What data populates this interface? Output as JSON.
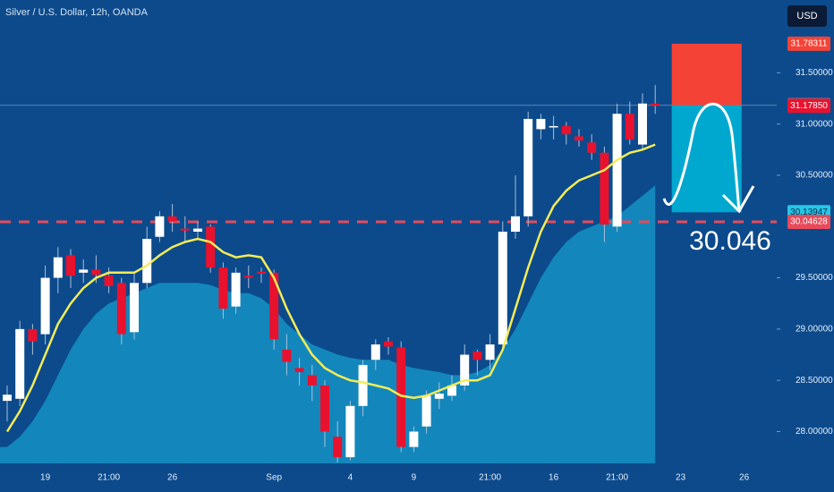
{
  "chart_data": {
    "type": "candlestick",
    "title": "Silver / U.S. Dollar, 12h, OANDA",
    "currency": "USD",
    "categories": [
      null,
      null,
      null,
      "19",
      null,
      null,
      null,
      null,
      "21:00",
      null,
      null,
      null,
      null,
      "26",
      null,
      null,
      null,
      null,
      null,
      null,
      null,
      "Sep",
      null,
      null,
      null,
      null,
      null,
      "4",
      null,
      null,
      null,
      null,
      "9",
      null,
      null,
      null,
      null,
      null,
      "21:00",
      null,
      null,
      null,
      null,
      "16",
      null,
      null,
      null,
      null,
      "21:00",
      null,
      null,
      null,
      null,
      "23",
      null,
      null,
      null,
      null,
      "26",
      null
    ],
    "open": [
      28.3,
      28.32,
      29.0,
      28.95,
      29.5,
      29.72,
      29.55,
      29.58,
      29.52,
      29.45,
      28.97,
      29.45,
      29.9,
      30.1,
      29.98,
      29.95,
      30.0,
      29.6,
      29.22,
      29.52,
      29.56,
      29.55,
      28.8,
      28.62,
      28.55,
      28.45,
      27.95,
      27.75,
      28.25,
      28.7,
      28.88,
      28.82,
      27.85,
      28.05,
      28.32,
      28.35,
      28.45,
      28.78,
      28.7,
      28.85,
      29.95,
      30.1,
      30.95,
      30.98,
      30.98,
      30.88,
      30.82,
      30.72,
      30.0,
      31.1,
      30.8,
      31.2,
      null,
      null,
      null,
      null,
      null,
      null,
      null,
      null
    ],
    "high": [
      28.45,
      29.08,
      29.05,
      29.62,
      29.8,
      29.78,
      29.68,
      29.72,
      29.6,
      29.5,
      29.55,
      30.0,
      30.15,
      30.22,
      30.1,
      30.05,
      30.02,
      29.65,
      29.6,
      29.62,
      29.6,
      29.58,
      28.95,
      28.72,
      28.65,
      28.5,
      28.1,
      28.3,
      28.7,
      28.9,
      28.92,
      28.88,
      28.05,
      28.4,
      28.48,
      28.55,
      28.85,
      28.8,
      28.95,
      30.05,
      30.5,
      31.12,
      31.1,
      31.08,
      31.02,
      30.95,
      30.9,
      30.78,
      31.2,
      31.22,
      31.3,
      31.38,
      null,
      null,
      null,
      null,
      null,
      null,
      null,
      null
    ],
    "low": [
      28.1,
      28.25,
      28.75,
      28.85,
      29.35,
      29.4,
      29.45,
      29.45,
      29.35,
      28.85,
      28.9,
      29.4,
      29.85,
      29.95,
      29.85,
      29.88,
      29.55,
      29.1,
      29.15,
      29.4,
      29.45,
      28.8,
      28.55,
      28.45,
      28.3,
      27.85,
      27.7,
      27.72,
      28.15,
      28.6,
      28.75,
      27.8,
      27.8,
      27.98,
      28.22,
      28.3,
      28.4,
      28.55,
      28.6,
      28.8,
      29.88,
      30.0,
      30.85,
      30.85,
      30.8,
      30.78,
      30.65,
      29.85,
      29.95,
      30.8,
      30.75,
      31.1,
      null,
      null,
      null,
      null,
      null,
      null,
      null,
      null
    ],
    "close": [
      28.36,
      29.0,
      28.88,
      29.5,
      29.7,
      29.52,
      29.58,
      29.53,
      29.42,
      28.95,
      29.45,
      29.88,
      30.1,
      30.05,
      29.96,
      29.98,
      29.6,
      29.2,
      29.55,
      29.5,
      29.54,
      28.9,
      28.68,
      28.58,
      28.45,
      28.0,
      27.75,
      28.25,
      28.65,
      28.85,
      28.83,
      27.85,
      28.0,
      28.35,
      28.37,
      28.45,
      28.75,
      28.7,
      28.85,
      29.95,
      30.1,
      31.05,
      31.05,
      30.98,
      30.9,
      30.84,
      30.72,
      30.02,
      31.1,
      30.85,
      31.2,
      31.178,
      null,
      null,
      null,
      null,
      null,
      null,
      null,
      null
    ],
    "up_color": "#ffffff",
    "down_color": "#e8122e",
    "series": [
      {
        "kind": "area",
        "color": "#1592c4",
        "values": [
          27.85,
          27.95,
          28.1,
          28.3,
          28.55,
          28.8,
          29.0,
          29.15,
          29.25,
          29.3,
          29.35,
          29.4,
          29.45,
          29.45,
          29.45,
          29.45,
          29.43,
          29.38,
          29.35,
          29.35,
          29.3,
          29.2,
          29.05,
          28.95,
          28.85,
          28.8,
          28.75,
          28.72,
          28.7,
          28.7,
          28.7,
          28.65,
          28.62,
          28.6,
          28.58,
          28.55,
          28.55,
          28.58,
          28.65,
          28.8,
          29.0,
          29.25,
          29.5,
          29.7,
          29.85,
          29.95,
          30.0,
          30.05,
          30.1,
          30.2,
          30.3,
          30.4,
          null,
          null,
          null,
          null,
          null,
          null,
          null,
          null
        ]
      },
      {
        "kind": "line",
        "color": "#f4ec55",
        "values": [
          28.0,
          28.2,
          28.45,
          28.75,
          29.05,
          29.25,
          29.4,
          29.5,
          29.55,
          29.55,
          29.55,
          29.62,
          29.72,
          29.8,
          29.85,
          29.88,
          29.85,
          29.75,
          29.7,
          29.72,
          29.7,
          29.5,
          29.2,
          28.95,
          28.75,
          28.62,
          28.55,
          28.5,
          28.48,
          28.45,
          28.42,
          28.35,
          28.33,
          28.35,
          28.4,
          28.45,
          28.5,
          28.5,
          28.55,
          28.8,
          29.2,
          29.6,
          29.95,
          30.2,
          30.35,
          30.45,
          30.5,
          30.55,
          30.65,
          30.72,
          30.75,
          30.8,
          null,
          null,
          null,
          null,
          null,
          null,
          null,
          null
        ]
      }
    ],
    "ylim": [
      27.69,
      32.21
    ],
    "yticks": [
      {
        "value": 28,
        "label": "28.00000"
      },
      {
        "value": 28.5,
        "label": "28.50000"
      },
      {
        "value": 29,
        "label": "29.00000"
      },
      {
        "value": 29.5,
        "label": "29.50000"
      },
      {
        "value": 30.5,
        "label": "30.50000"
      },
      {
        "value": 31,
        "label": "31.00000"
      },
      {
        "value": 31.5,
        "label": "31.50000"
      }
    ],
    "level": 30.04628,
    "level_color": "#e84a5a",
    "position": {
      "stop": 31.78311,
      "entry": 31.18314,
      "target": 30.13947,
      "stop_color": "#f44336",
      "target_color": "#00a8cf"
    },
    "price_tags": [
      {
        "value": 31.78311,
        "color": "#f44336",
        "text_color": "#ffffff"
      },
      {
        "value": 31.18314,
        "color": "#8b8f96",
        "text_color": "#ffffff"
      },
      {
        "value": 31.1785,
        "label": "31.17850",
        "color": "#e8122e",
        "text_color": "#ffffff"
      },
      {
        "value": 30.13947,
        "color": "#26c6e6",
        "text_color": "#0a2a4a"
      },
      {
        "value": 30.04628,
        "color": "#e84a5a",
        "text_color": "#ffffff"
      }
    ],
    "annotation": "30.046"
  }
}
